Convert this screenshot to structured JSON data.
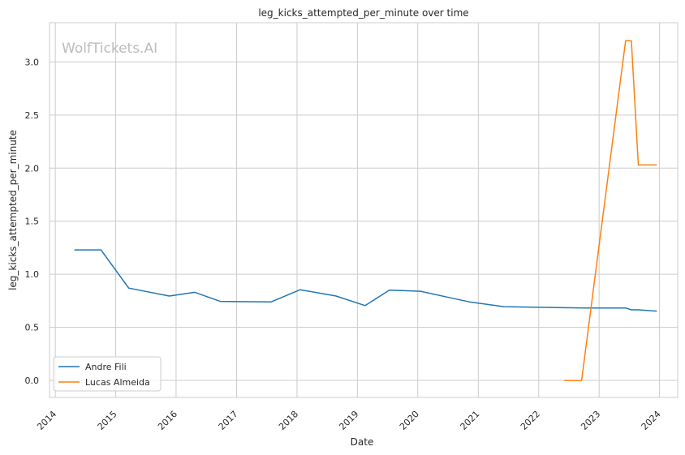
{
  "chart_data": {
    "type": "line",
    "title": "leg_kicks_attempted_per_minute over time",
    "xlabel": "Date",
    "ylabel": "leg_kicks_attempted_per_minute",
    "watermark": "WolfTickets.AI",
    "x_ticks": [
      "2014",
      "2015",
      "2016",
      "2017",
      "2018",
      "2019",
      "2020",
      "2021",
      "2022",
      "2023",
      "2024"
    ],
    "y_ticks": [
      "0.0",
      "0.5",
      "1.0",
      "1.5",
      "2.0",
      "2.5",
      "3.0"
    ],
    "xlim": [
      "2013-11-27",
      "2024-04-20"
    ],
    "ylim": [
      -0.16,
      3.37
    ],
    "grid": true,
    "legend_position": "lower-left",
    "series": [
      {
        "name": "Andre Fili",
        "color": "#1f77b4",
        "points": [
          [
            "2014-04-26",
            1.23
          ],
          [
            "2014-10-04",
            1.23
          ],
          [
            "2015-03-21",
            0.87
          ],
          [
            "2015-11-21",
            0.795
          ],
          [
            "2016-04-23",
            0.83
          ],
          [
            "2016-09-24",
            0.745
          ],
          [
            "2017-07-29",
            0.74
          ],
          [
            "2018-01-20",
            0.855
          ],
          [
            "2018-08-25",
            0.795
          ],
          [
            "2019-02-17",
            0.705
          ],
          [
            "2019-07-13",
            0.85
          ],
          [
            "2020-01-18",
            0.84
          ],
          [
            "2020-06-27",
            0.785
          ],
          [
            "2020-11-07",
            0.74
          ],
          [
            "2021-06-05",
            0.695
          ],
          [
            "2022-06-04",
            0.685
          ],
          [
            "2022-10-15",
            0.683
          ],
          [
            "2023-06-10",
            0.683
          ],
          [
            "2023-07-15",
            0.665
          ],
          [
            "2023-08-26",
            0.665
          ],
          [
            "2023-12-16",
            0.653
          ]
        ]
      },
      {
        "name": "Lucas Almeida",
        "color": "#ff7f0e",
        "points": [
          [
            "2022-06-04",
            0.0
          ],
          [
            "2022-09-17",
            0.0
          ],
          [
            "2023-06-10",
            3.2
          ],
          [
            "2023-07-15",
            3.2
          ],
          [
            "2023-08-26",
            2.03
          ],
          [
            "2023-12-16",
            2.03
          ]
        ]
      }
    ]
  }
}
